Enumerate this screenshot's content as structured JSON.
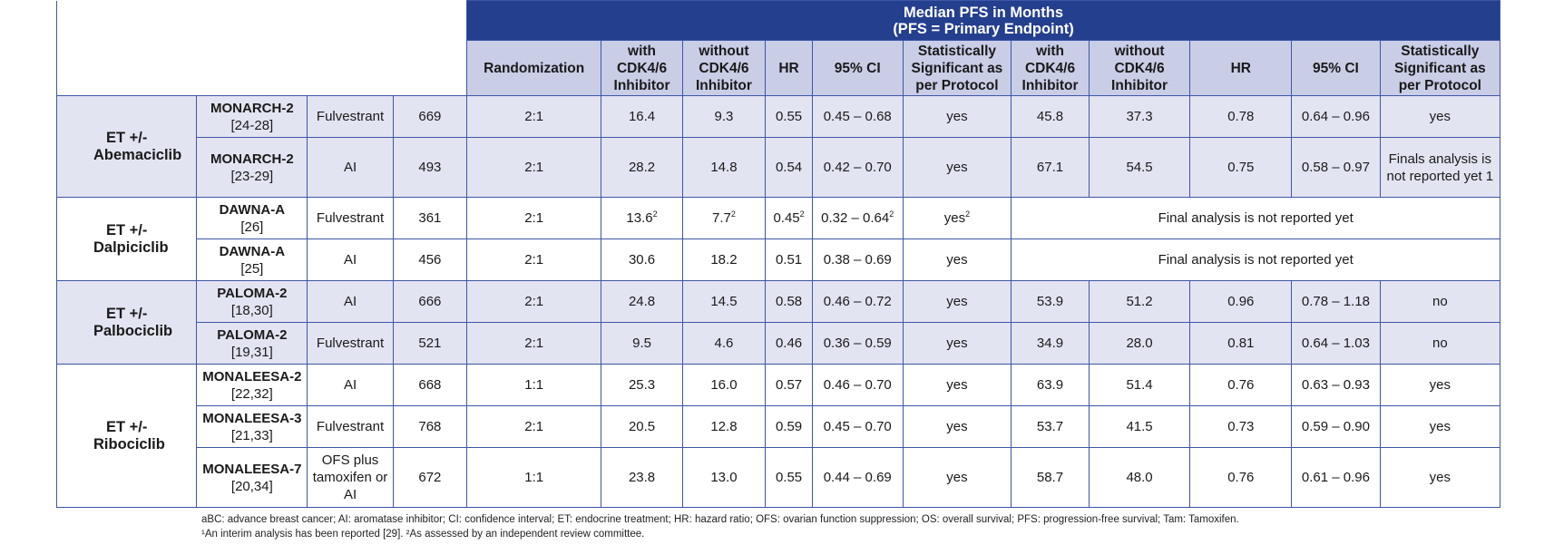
{
  "header": {
    "title_line1": "Median PFS in Months",
    "title_line2": "(PFS = Primary Endpoint)",
    "columns": [
      "Randomization",
      "with CDK4/6 Inhibitor",
      "without CDK4/6 Inhibitor",
      "HR",
      "95% CI",
      "Statistically Significant as per Protocol",
      "with CDK4/6 Inhibitor",
      "without CDK4/6 Inhibitor",
      "HR",
      "95% CI",
      "Statistically Significant as per Protocol"
    ]
  },
  "groups": [
    {
      "label": "ET +/- Abemaciclib",
      "rows": [
        {
          "trial": "MONARCH-2",
          "ref": "[24-28]",
          "partner": "Fulvestrant",
          "n": "669",
          "rand": "2:1",
          "with": "16.4",
          "without": "9.3",
          "hr": "0.55",
          "ci": "0.45 – 0.68",
          "sig": "yes",
          "os_with": "45.8",
          "os_without": "37.3",
          "os_hr": "0.78",
          "os_ci": "0.64 – 0.96",
          "os_sig": "yes"
        },
        {
          "trial": "MONARCH-2",
          "ref": "[23-29]",
          "partner": "AI",
          "n": "493",
          "rand": "2:1",
          "with": "28.2",
          "without": "14.8",
          "hr": "0.54",
          "ci": "0.42 – 0.70",
          "sig": "yes",
          "os_with": "67.1",
          "os_without": "54.5",
          "os_hr": "0.75",
          "os_ci": "0.58 – 0.97",
          "os_sig": "Finals analysis is not reported yet 1"
        }
      ]
    },
    {
      "label": "ET +/- Dalpiciclib",
      "rows": [
        {
          "trial": "DAWNA-A",
          "ref": "[26]",
          "partner": "Fulvestrant",
          "n": "361",
          "rand": "2:1",
          "with": "13.6",
          "without": "7.7",
          "hr": "0.45",
          "ci": "0.32 – 0.64",
          "sig": "yes",
          "sup": "2",
          "os_note": "Final analysis is not reported yet"
        },
        {
          "trial": "DAWNA-A",
          "ref": "[25]",
          "partner": "AI",
          "n": "456",
          "rand": "2:1",
          "with": "30.6",
          "without": "18.2",
          "hr": "0.51",
          "ci": "0.38 – 0.69",
          "sig": "yes",
          "os_note": "Final analysis is not reported yet"
        }
      ]
    },
    {
      "label": "ET +/- Palbociclib",
      "rows": [
        {
          "trial": "PALOMA-2",
          "ref": "[18,30]",
          "partner": "AI",
          "n": "666",
          "rand": "2:1",
          "with": "24.8",
          "without": "14.5",
          "hr": "0.58",
          "ci": "0.46 – 0.72",
          "sig": "yes",
          "os_with": "53.9",
          "os_without": "51.2",
          "os_hr": "0.96",
          "os_ci": "0.78 – 1.18",
          "os_sig": "no"
        },
        {
          "trial": "PALOMA-2",
          "ref": "[19,31]",
          "partner": "Fulvestrant",
          "n": "521",
          "rand": "2:1",
          "with": "9.5",
          "without": "4.6",
          "hr": "0.46",
          "ci": "0.36 – 0.59",
          "sig": "yes",
          "os_with": "34.9",
          "os_without": "28.0",
          "os_hr": "0.81",
          "os_ci": "0.64 – 1.03",
          "os_sig": "no"
        }
      ]
    },
    {
      "label": "ET +/- Ribociclib",
      "rows": [
        {
          "trial": "MONALEESA-2",
          "ref": "[22,32]",
          "partner": "AI",
          "n": "668",
          "rand": "1:1",
          "with": "25.3",
          "without": "16.0",
          "hr": "0.57",
          "ci": "0.46 – 0.70",
          "sig": "yes",
          "os_with": "63.9",
          "os_without": "51.4",
          "os_hr": "0.76",
          "os_ci": "0.63 – 0.93",
          "os_sig": "yes"
        },
        {
          "trial": "MONALEESA-3",
          "ref": "[21,33]",
          "partner": "Fulvestrant",
          "n": "768",
          "rand": "2:1",
          "with": "20.5",
          "without": "12.8",
          "hr": "0.59",
          "ci": "0.45 – 0.70",
          "sig": "yes",
          "os_with": "53.7",
          "os_without": "41.5",
          "os_hr": "0.73",
          "os_ci": "0.59 – 0.90",
          "os_sig": "yes"
        },
        {
          "trial": "MONALEESA-7",
          "ref": "[20,34]",
          "partner": "OFS plus tamoxifen or AI",
          "n": "672",
          "rand": "1:1",
          "with": "23.8",
          "without": "13.0",
          "hr": "0.55",
          "ci": "0.44 – 0.69",
          "sig": "yes",
          "os_with": "58.7",
          "os_without": "48.0",
          "os_hr": "0.76",
          "os_ci": "0.61 – 0.96",
          "os_sig": "yes"
        }
      ]
    }
  ],
  "footnotes": {
    "line1": "aBC: advance breast cancer; AI: aromatase inhibitor; CI: confidence interval; ET: endocrine treatment; HR: hazard ratio; OFS: ovarian function suppression; OS: overall survival; PFS: progression-free survival; Tam: Tamoxifen.",
    "line2": "¹An interim analysis has been reported [29]. ²As assessed by an independent review committee."
  },
  "colors": {
    "header_dark": "#253f8f",
    "header_light": "#c9cde6",
    "row_shade": "#e3e4f2",
    "border": "#3d56a6"
  }
}
